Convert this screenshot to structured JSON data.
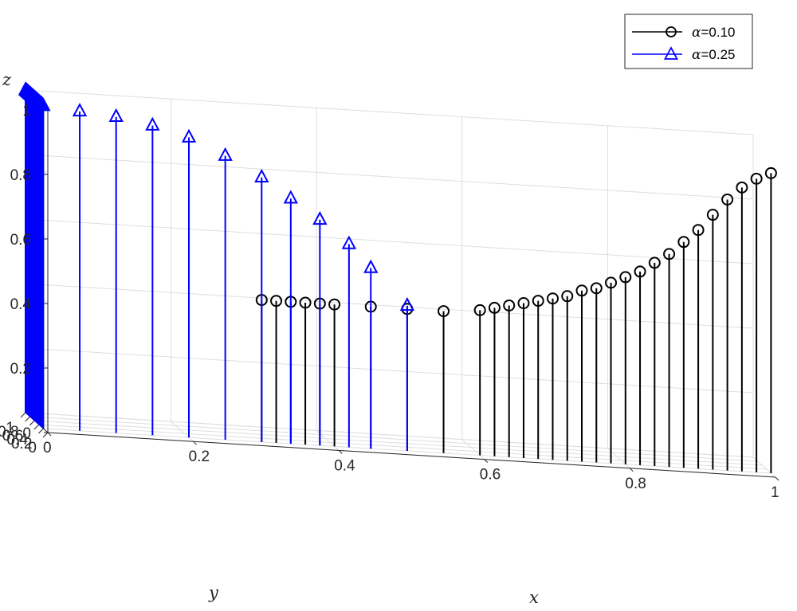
{
  "chart_data": {
    "type": "stem3",
    "title": "",
    "xlabel": "x",
    "ylabel": "y",
    "zlabel": "z",
    "xlim": [
      0,
      1
    ],
    "ylim": [
      0,
      1
    ],
    "zlim": [
      0,
      1
    ],
    "xticks": [
      "0",
      "0.2",
      "0.4",
      "0.6",
      "0.8",
      "1"
    ],
    "yticks": [
      "0",
      "0.2",
      "0.4",
      "0.6",
      "0.8",
      "1"
    ],
    "zticks": [
      "0",
      "0.2",
      "0.4",
      "0.6",
      "0.8",
      "1"
    ],
    "grid": true,
    "legend_position": "top-right",
    "series": [
      {
        "name": "α=0.10",
        "legend_symbol": "α",
        "legend_value": "=0.10",
        "color": "#000000",
        "marker": "circle",
        "points": [
          [
            0.3,
            0.2,
            0.44
          ],
          [
            0.32,
            0.2,
            0.44
          ],
          [
            0.34,
            0.2,
            0.44
          ],
          [
            0.36,
            0.2,
            0.44
          ],
          [
            0.38,
            0.2,
            0.44
          ],
          [
            0.4,
            0.2,
            0.44
          ],
          [
            0.45,
            0.2,
            0.44
          ],
          [
            0.5,
            0.2,
            0.44
          ],
          [
            0.55,
            0.2,
            0.44
          ],
          [
            0.6,
            0.2,
            0.45
          ],
          [
            0.62,
            0.2,
            0.46
          ],
          [
            0.64,
            0.2,
            0.47
          ],
          [
            0.66,
            0.2,
            0.48
          ],
          [
            0.68,
            0.2,
            0.49
          ],
          [
            0.7,
            0.2,
            0.5
          ],
          [
            0.72,
            0.2,
            0.51
          ],
          [
            0.74,
            0.2,
            0.53
          ],
          [
            0.76,
            0.2,
            0.54
          ],
          [
            0.78,
            0.2,
            0.56
          ],
          [
            0.8,
            0.2,
            0.58
          ],
          [
            0.82,
            0.2,
            0.6
          ],
          [
            0.84,
            0.2,
            0.63
          ],
          [
            0.86,
            0.2,
            0.66
          ],
          [
            0.88,
            0.2,
            0.7
          ],
          [
            0.9,
            0.2,
            0.74
          ],
          [
            0.92,
            0.2,
            0.79
          ],
          [
            0.94,
            0.2,
            0.84
          ],
          [
            0.96,
            0.2,
            0.88
          ],
          [
            0.98,
            0.2,
            0.91
          ],
          [
            1.0,
            0.2,
            0.93
          ]
        ]
      },
      {
        "name": "α=0.25",
        "legend_symbol": "α",
        "legend_value": "=0.25",
        "color": "#0000ff",
        "marker": "triangle",
        "points": [
          [
            0.0,
            1.0,
            1.0
          ],
          [
            0.0,
            0.98,
            1.0
          ],
          [
            0.0,
            0.96,
            1.0
          ],
          [
            0.0,
            0.94,
            1.0
          ],
          [
            0.0,
            0.92,
            1.0
          ],
          [
            0.0,
            0.9,
            1.0
          ],
          [
            0.0,
            0.88,
            1.0
          ],
          [
            0.0,
            0.86,
            1.0
          ],
          [
            0.0,
            0.84,
            1.0
          ],
          [
            0.0,
            0.82,
            1.0
          ],
          [
            0.0,
            0.8,
            1.0
          ],
          [
            0.0,
            0.78,
            1.0
          ],
          [
            0.0,
            0.76,
            1.0
          ],
          [
            0.0,
            0.74,
            1.0
          ],
          [
            0.0,
            0.72,
            1.0
          ],
          [
            0.0,
            0.7,
            1.0
          ],
          [
            0.0,
            0.68,
            1.0
          ],
          [
            0.0,
            0.66,
            1.0
          ],
          [
            0.0,
            0.64,
            1.0
          ],
          [
            0.0,
            0.62,
            1.0
          ],
          [
            0.0,
            0.6,
            1.0
          ],
          [
            0.0,
            0.58,
            1.0
          ],
          [
            0.0,
            0.56,
            1.0
          ],
          [
            0.0,
            0.54,
            1.0
          ],
          [
            0.0,
            0.52,
            1.0
          ],
          [
            0.0,
            0.5,
            1.0
          ],
          [
            0.0,
            0.48,
            1.0
          ],
          [
            0.0,
            0.46,
            1.0
          ],
          [
            0.0,
            0.44,
            1.0
          ],
          [
            0.0,
            0.42,
            1.0
          ],
          [
            0.0,
            0.4,
            1.0
          ],
          [
            0.0,
            0.38,
            1.0
          ],
          [
            0.0,
            0.36,
            1.0
          ],
          [
            0.0,
            0.34,
            1.0
          ],
          [
            0.0,
            0.32,
            1.0
          ],
          [
            0.0,
            0.3,
            1.0
          ],
          [
            0.0,
            0.28,
            1.0
          ],
          [
            0.0,
            0.26,
            1.0
          ],
          [
            0.0,
            0.24,
            1.0
          ],
          [
            0.0,
            0.22,
            1.0
          ],
          [
            0.0,
            0.2,
            1.0
          ],
          [
            0.05,
            0.2,
            0.99
          ],
          [
            0.1,
            0.2,
            0.98
          ],
          [
            0.15,
            0.2,
            0.96
          ],
          [
            0.2,
            0.2,
            0.93
          ],
          [
            0.25,
            0.2,
            0.88
          ],
          [
            0.3,
            0.2,
            0.82
          ],
          [
            0.34,
            0.2,
            0.76
          ],
          [
            0.38,
            0.2,
            0.7
          ],
          [
            0.42,
            0.2,
            0.63
          ],
          [
            0.45,
            0.2,
            0.56
          ],
          [
            0.5,
            0.2,
            0.45
          ]
        ]
      }
    ]
  }
}
